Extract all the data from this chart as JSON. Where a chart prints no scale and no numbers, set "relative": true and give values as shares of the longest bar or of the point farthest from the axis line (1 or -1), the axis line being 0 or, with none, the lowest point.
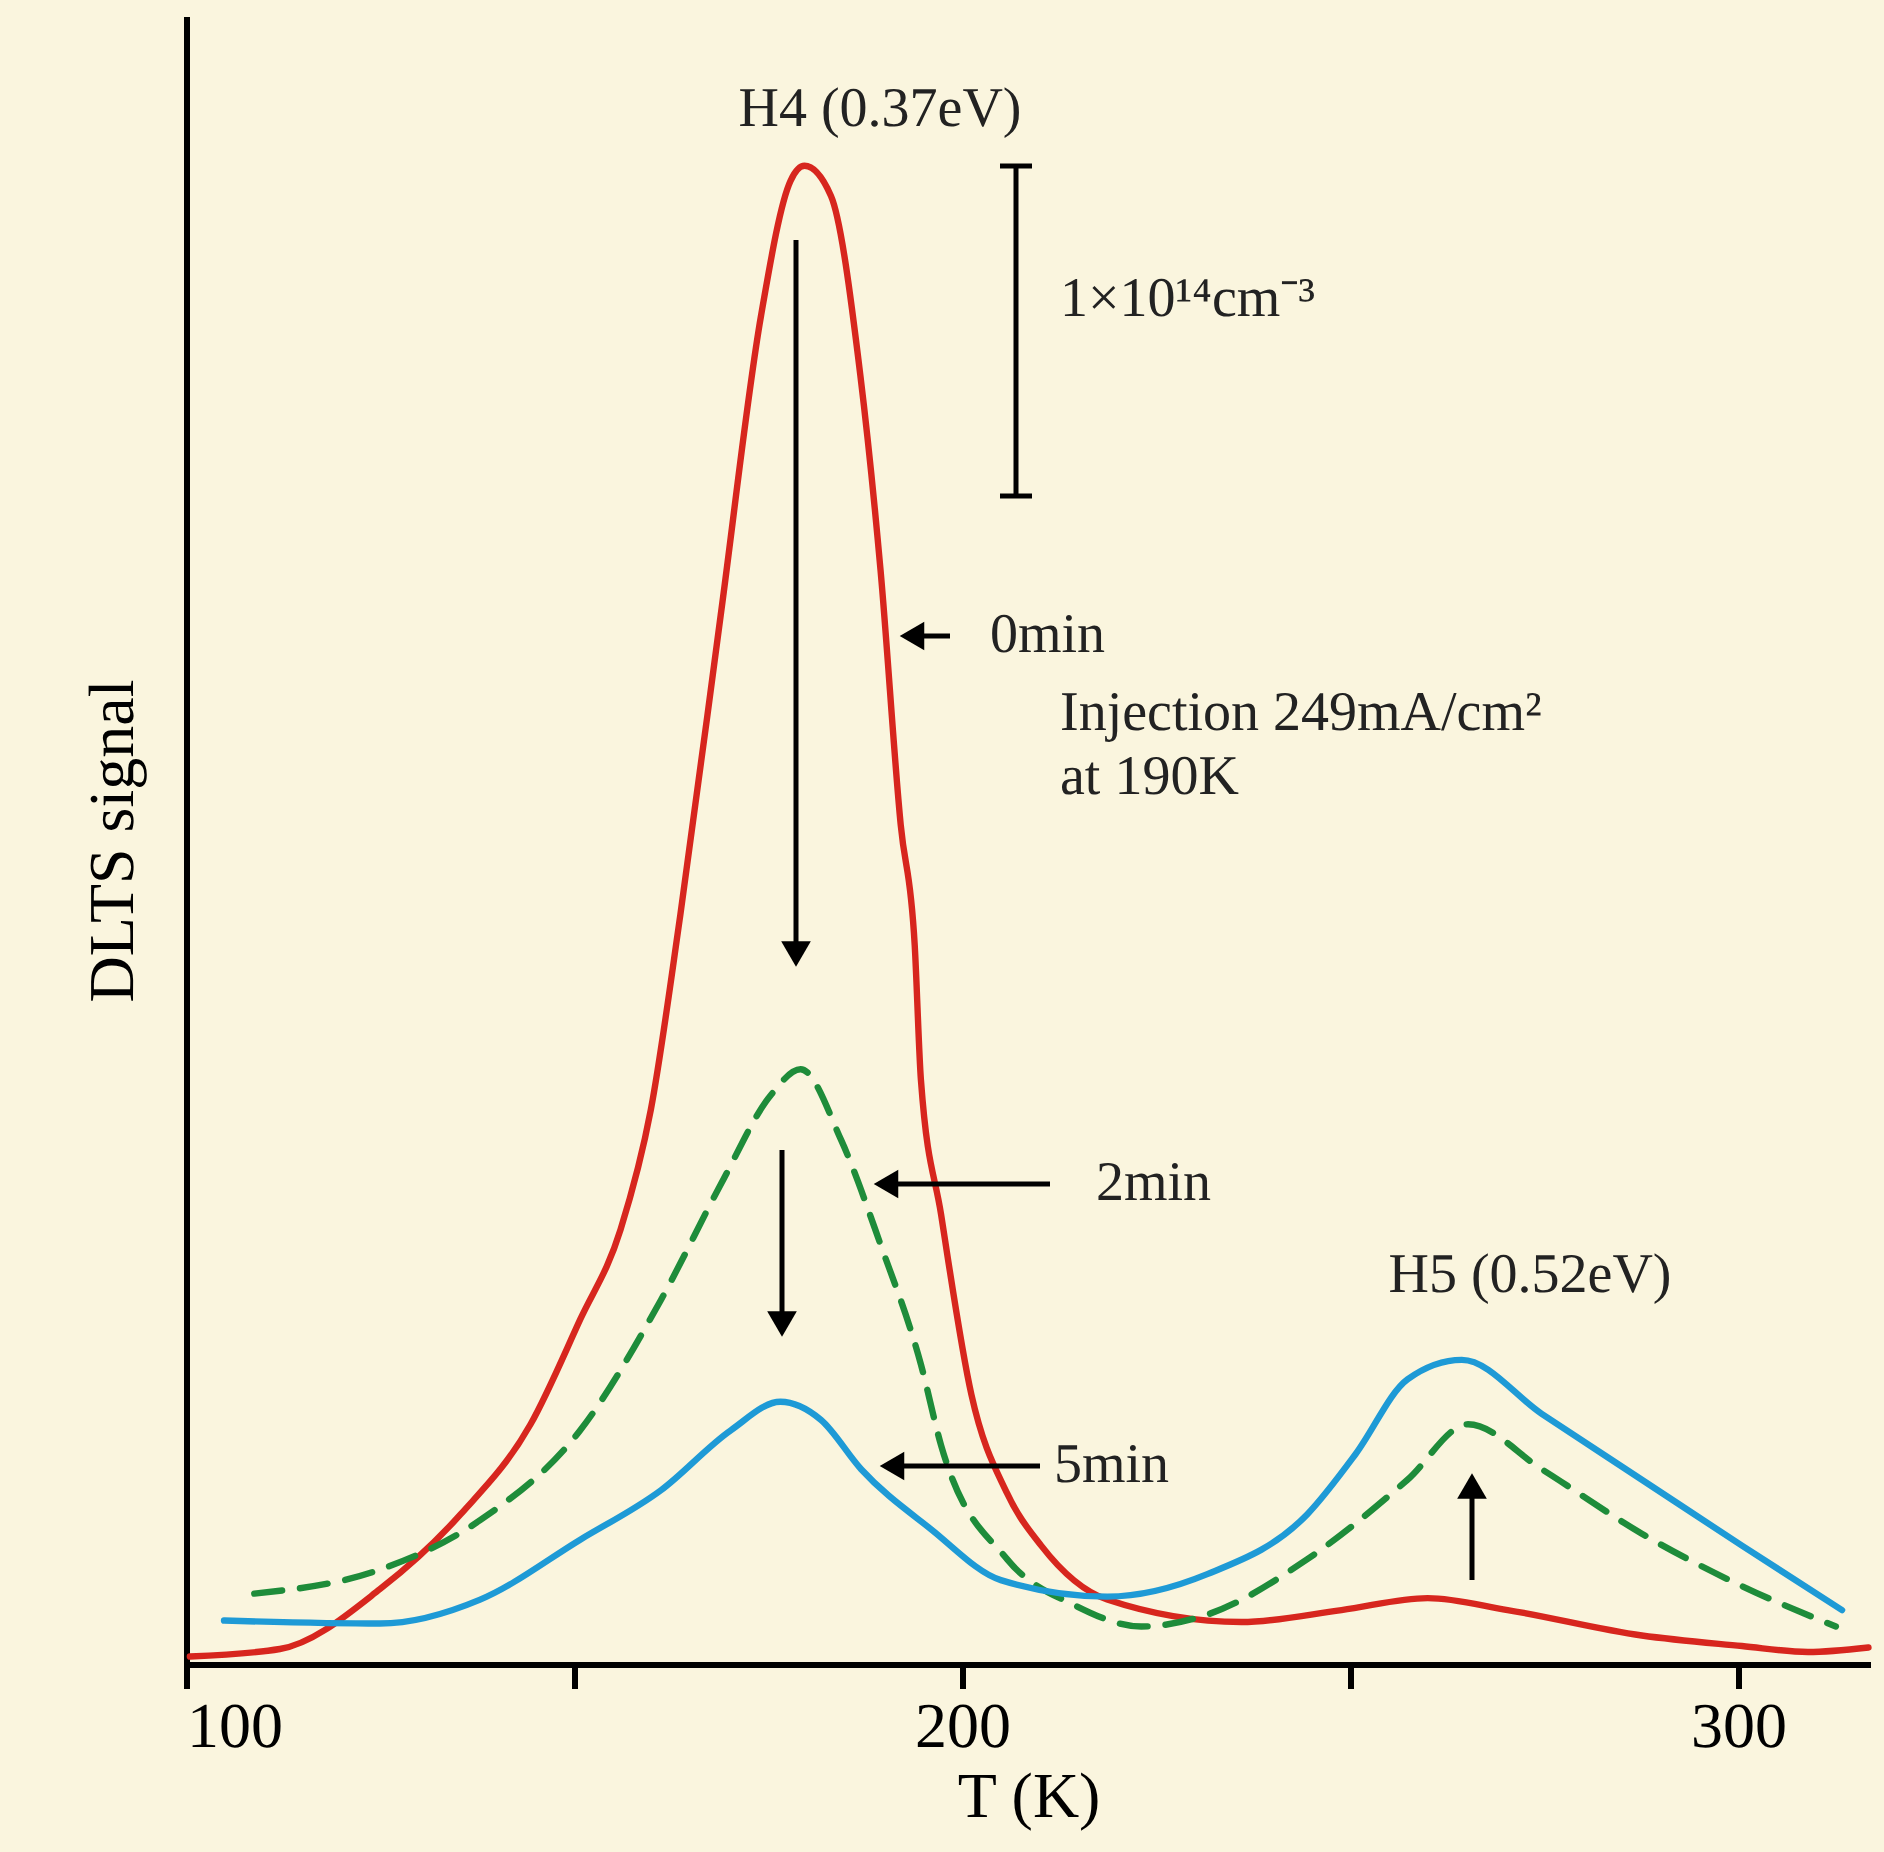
{
  "chart_data": {
    "type": "line",
    "xlabel": "T (K)",
    "ylabel": "DLTS signal",
    "relative": true,
    "grid": false,
    "xlim": [
      100,
      317
    ],
    "xticks": [
      100,
      {
        "value": 150,
        "label": null
      },
      200,
      {
        "value": 250,
        "label": null
      },
      300
    ],
    "series": [
      {
        "color": "#d7261e",
        "line_style": "solid",
        "x": [
          100.5,
          112.1,
          125,
          135.4,
          144.4,
          150.8,
          156,
          159.9,
          163.7,
          168.9,
          174.1,
          177.9,
          179.7,
          183.1,
          186.9,
          189.5,
          192.1,
          193.9,
          194.7,
          197.3,
          201.2,
          205.8,
          210.2,
          218.7,
          236,
          248.9,
          260,
          270.3,
          287.6,
          300.5,
          309,
          316.8
        ],
        "values": [
          0.005,
          0.01,
          0.05,
          0.1,
          0.16,
          0.23,
          0.29,
          0.37,
          0.5,
          0.7,
          0.9,
          0.99,
          1,
          0.98,
          0.86,
          0.73,
          0.56,
          0.48,
          0.39,
          0.3,
          0.18,
          0.114,
          0.079,
          0.043,
          0.028,
          0.036,
          0.044,
          0.036,
          0.019,
          0.012,
          0.008,
          0.011
        ]
      },
      {
        "color": "#1e8c3a",
        "line_style": "dashed",
        "x": [
          108.8,
          125,
          137.9,
          150.8,
          161.2,
          168.9,
          175.4,
          179.2,
          184.4,
          189.5,
          194.7,
          197.3,
          205.8,
          214.6,
          223.1,
          231.6,
          244.5,
          257.4,
          265.2,
          274.7,
          287.6,
          300.5,
          312.6
        ],
        "values": [
          0.047,
          0.063,
          0.096,
          0.156,
          0.243,
          0.32,
          0.38,
          0.397,
          0.35,
          0.28,
          0.2,
          0.146,
          0.07,
          0.039,
          0.025,
          0.033,
          0.07,
          0.123,
          0.16,
          0.13,
          0.087,
          0.052,
          0.025
        ]
      },
      {
        "color": "#1e9ad6",
        "line_style": "solid",
        "x": [
          104.9,
          125,
          137.9,
          150.8,
          161.2,
          170.2,
          176.6,
          181.8,
          187,
          196,
          205,
          218.7,
          231.6,
          244.5,
          250.7,
          257.4,
          264.4,
          274.7,
          287.6,
          300.5,
          313.4
        ],
        "values": [
          0.029,
          0.027,
          0.043,
          0.083,
          0.116,
          0.156,
          0.175,
          0.163,
          0.13,
          0.09,
          0.056,
          0.045,
          0.06,
          0.1,
          0.14,
          0.19,
          0.203,
          0.167,
          0.123,
          0.079,
          0.036
        ]
      }
    ],
    "annotations": [
      "H4 (0.37eV)",
      "0min",
      "2min",
      "5min",
      "H5 (0.52eV)",
      "1×10¹⁴cm⁻³",
      "Injection 249mA/cm²\nat 190K"
    ]
  }
}
